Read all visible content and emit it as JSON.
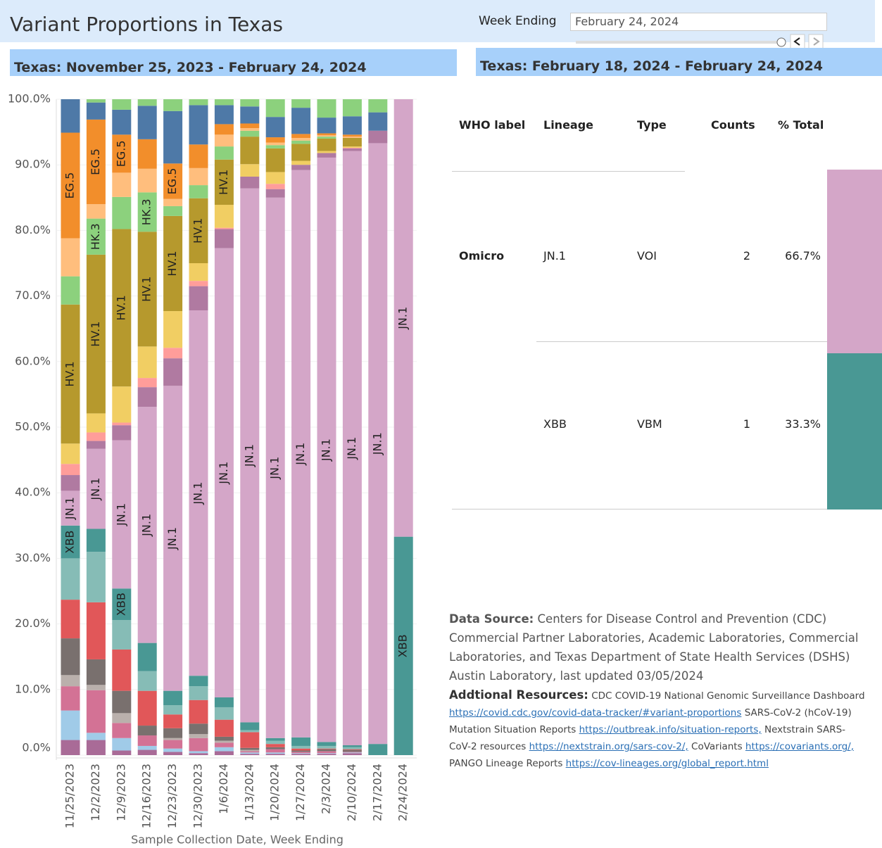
{
  "header": {
    "title": "Variant Proportions in Texas",
    "left_subtitle": "Texas: November 25, 2023 - February 24, 2024",
    "right_subtitle": "Texas: February 18, 2024 - February 24, 2024"
  },
  "filter": {
    "label": "Week Ending",
    "value": "February 24, 2024"
  },
  "chart_data": {
    "type": "stacked_bar",
    "x_label": "Sample Collection Date, Week Ending",
    "categories": [
      "11/25/2023",
      "12/2/2023",
      "12/9/2023",
      "12/16/2023",
      "12/23/2023",
      "12/30/2023",
      "1/6/2024",
      "1/13/2024",
      "1/20/2024",
      "1/27/2024",
      "2/3/2024",
      "2/10/2024",
      "2/17/2024",
      "2/24/2024"
    ],
    "ylim": [
      0,
      100
    ],
    "yticks": [
      {
        "value": 0,
        "label": "0.0%"
      },
      {
        "value": 10,
        "label": "10.0%"
      },
      {
        "value": 20,
        "label": "20.0%"
      },
      {
        "value": 30,
        "label": "30.0%"
      },
      {
        "value": 40,
        "label": "40.0%"
      },
      {
        "value": 50,
        "label": "50.0%"
      },
      {
        "value": 60,
        "label": "60.0%"
      },
      {
        "value": 70,
        "label": "70.0%"
      },
      {
        "value": 80,
        "label": "80.0%"
      },
      {
        "value": 90,
        "label": "90.0%"
      },
      {
        "value": 100,
        "label": "100.0%"
      }
    ],
    "grid": true,
    "series": [
      {
        "color": "#a96b97",
        "values": [
          2.3,
          2.3,
          0.7,
          0.8,
          0.5,
          0.3,
          0.6,
          0.2,
          0.2,
          0.2,
          0.2,
          0.3,
          0,
          0
        ]
      },
      {
        "color": "#a0cbe8",
        "values": [
          4.5,
          1.1,
          1.9,
          0.6,
          0.5,
          0.3,
          0.6,
          0.2,
          0.2,
          0.1,
          0.1,
          0.1,
          0,
          0
        ]
      },
      {
        "color": "#d37295",
        "values": [
          3.7,
          6.5,
          2.3,
          1.6,
          1.3,
          2,
          0.7,
          0.2,
          0.5,
          0.2,
          0.3,
          0.1,
          0,
          0
        ]
      },
      {
        "color": "#bab0ac",
        "values": [
          1.7,
          0.8,
          1.5,
          0,
          0.3,
          0.6,
          0.3,
          0.2,
          0,
          0,
          0,
          0,
          0,
          0
        ]
      },
      {
        "color": "#79706e",
        "values": [
          5.6,
          3.9,
          3.4,
          1.5,
          1.5,
          1.6,
          0.6,
          0.3,
          0.3,
          0.2,
          0.3,
          0.3,
          0,
          0
        ]
      },
      {
        "color": "#e15759",
        "values": [
          5.9,
          8.7,
          6.3,
          5.3,
          2.1,
          3.6,
          2.6,
          2.4,
          0.5,
          0.3,
          0.1,
          0.1,
          0,
          0
        ]
      },
      {
        "color": "#86bcb6",
        "values": [
          6.3,
          7.7,
          4.5,
          3,
          1.4,
          2.1,
          1.9,
          0.3,
          0.5,
          0.4,
          0.4,
          0.3,
          0,
          0
        ]
      },
      {
        "name": "XBB",
        "color": "#499894",
        "values": [
          5,
          3.5,
          4.8,
          4.3,
          2.2,
          1.6,
          1.5,
          1.2,
          0.4,
          1.3,
          0.6,
          0.3,
          1.7,
          33.3
        ]
      },
      {
        "name": "JN.1",
        "color": "#d4a6c8",
        "values": [
          5.3,
          12.2,
          22.6,
          36,
          46.5,
          55.7,
          68.5,
          81.4,
          82.4,
          86.5,
          89.1,
          90.6,
          91.6,
          66.7
        ]
      },
      {
        "color": "#b07aa1",
        "values": [
          2.4,
          1.2,
          2.3,
          3,
          4.2,
          3.7,
          2.9,
          1.8,
          1.3,
          0.8,
          0.7,
          0.4,
          1.9,
          0
        ]
      },
      {
        "color": "#ff9d9a",
        "values": [
          1.7,
          1.3,
          0.4,
          1.4,
          1.6,
          0.8,
          0.2,
          0,
          0.8,
          0,
          0,
          0.1,
          0,
          0
        ]
      },
      {
        "color": "#f1ce63",
        "values": [
          3.1,
          2.9,
          5.5,
          4.8,
          5.6,
          2.7,
          3.5,
          1.9,
          1.8,
          0.6,
          0.3,
          0.2,
          0,
          0
        ]
      },
      {
        "name": "HV.1",
        "color": "#b6992d",
        "values": [
          21.2,
          24.2,
          24,
          17.5,
          14.5,
          9.9,
          6.9,
          4.2,
          3.6,
          2.6,
          1.9,
          1.3,
          0,
          0
        ]
      },
      {
        "name": "HK.3",
        "color": "#8cd17d",
        "values": [
          4.3,
          5.5,
          4.9,
          6,
          1.5,
          2,
          2,
          0.9,
          0.5,
          0.5,
          0.3,
          0,
          0,
          0
        ]
      },
      {
        "color": "#ffbe7d",
        "values": [
          5.8,
          2.2,
          3.7,
          3.6,
          1.1,
          2.6,
          1.8,
          0.4,
          0.4,
          0.4,
          0.2,
          0.2,
          0,
          0
        ]
      },
      {
        "name": "EG.5",
        "color": "#f28e2b",
        "values": [
          16.1,
          12.9,
          5.8,
          4.5,
          5.4,
          3.6,
          1.6,
          0.7,
          0.8,
          0.6,
          0.3,
          0.3,
          0,
          0
        ]
      },
      {
        "color": "#4e79a7",
        "values": [
          5.1,
          2.6,
          3.8,
          5.1,
          8,
          6,
          2.9,
          2.6,
          3.1,
          4,
          2.4,
          2.8,
          2.8,
          0
        ]
      },
      {
        "color": "#8cd17d",
        "values": [
          0,
          0.5,
          1.6,
          1,
          1.8,
          0.9,
          0.9,
          1.1,
          2.7,
          1.3,
          2.8,
          2.6,
          2,
          0
        ]
      }
    ]
  },
  "table": {
    "columns": [
      "WHO label",
      "Lineage",
      "Type",
      "Counts",
      "% Total"
    ],
    "rows": [
      [
        "Omicro",
        "JN.1",
        "VOI",
        2,
        "66.7%"
      ],
      [
        null,
        "XBB",
        "VBM",
        1,
        "33.3%"
      ]
    ]
  },
  "footer": {
    "source_label": "Data Source:",
    "source_text": "Centers for Disease Control and Prevention (CDC) Commercial Partner Laboratories, Academic Laboratories, Commercial Laboratories,  and Texas Department of State Health Services (DSHS) Austin Laboratory, last updated 03/05/2024",
    "resources_label": "Addtional Resources:",
    "resources": [
      {
        "text": "CDC COVID-19 National Genomic Surveillance Dashboard"
      },
      {
        "link": "https://covid.cdc.gov/covid-data-tracker/#variant-proportions"
      },
      {
        "text": "SARS-CoV-2 (hCoV-19) Mutation Situation Reports"
      },
      {
        "link": "https://outbreak.info/situation-reports,"
      },
      {
        "text": "Nextstrain SARS-CoV-2 resources"
      },
      {
        "link": "https://nextstrain.org/sars-cov-2/,"
      },
      {
        "text": "CoVariants"
      },
      {
        "link": "https://covariants.org/,"
      },
      {
        "text": "PANGO Lineage Reports"
      },
      {
        "link": "https://cov-lineages.org/global_report.html"
      }
    ]
  }
}
